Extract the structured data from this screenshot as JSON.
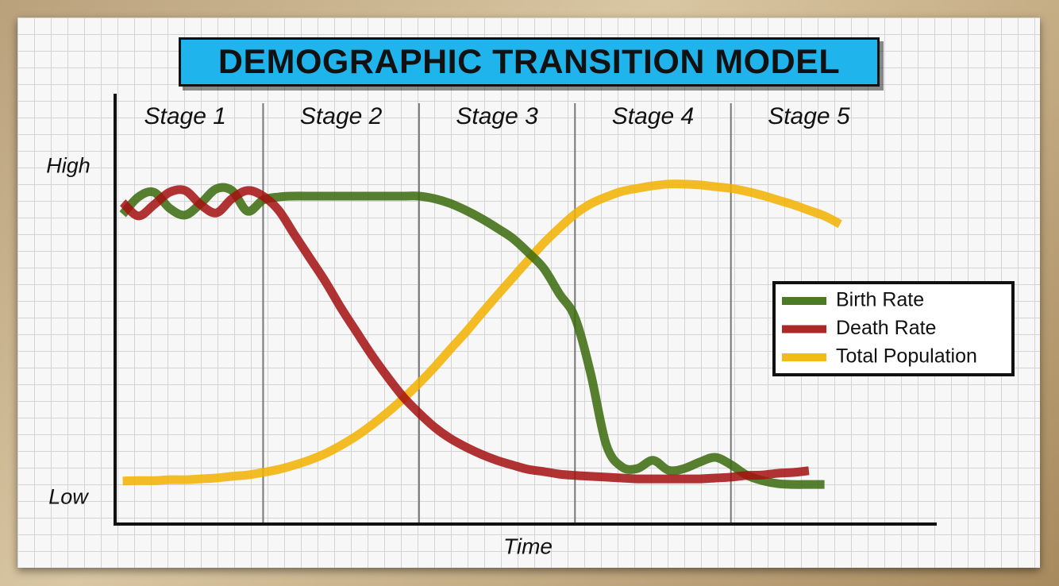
{
  "chart_data": {
    "type": "line",
    "title": "DEMOGRAPHIC TRANSITION MODEL",
    "x_label": "Time",
    "categories": [
      "Stage 1",
      "Stage 2",
      "Stage 3",
      "Stage 4",
      "Stage 5"
    ],
    "x": [
      0.1,
      0.2,
      0.3,
      0.4,
      0.5,
      0.6,
      0.7,
      0.8,
      0.9,
      1.0,
      1.1,
      1.2,
      1.3,
      1.4,
      1.5,
      1.6,
      1.7,
      1.8,
      1.9,
      2.0,
      2.1,
      2.2,
      2.3,
      2.4,
      2.5,
      2.6,
      2.7,
      2.8,
      2.9,
      3.0,
      3.1,
      3.2,
      3.3,
      3.4,
      3.5,
      3.6,
      3.7,
      3.8,
      3.9,
      4.0,
      4.1,
      4.2,
      4.3,
      4.4,
      4.5,
      4.6,
      4.7
    ],
    "xlim": [
      0,
      5.32
    ],
    "ylim": [
      0,
      100
    ],
    "yticks": [
      {
        "value": 83,
        "label": "High"
      },
      {
        "value": 6,
        "label": "Low"
      }
    ],
    "legend": "right",
    "series": [
      {
        "name": "Total Population",
        "color": "#f2b200",
        "values": [
          10.0,
          10.1,
          10.1,
          10.3,
          10.3,
          10.5,
          10.7,
          11.1,
          11.4,
          12.0,
          12.7,
          13.7,
          14.9,
          16.4,
          18.3,
          20.5,
          23.1,
          26.0,
          29.2,
          32.7,
          36.5,
          40.6,
          44.6,
          48.9,
          53.1,
          57.2,
          61.3,
          65.3,
          68.8,
          72.0,
          74.4,
          76.0,
          77.3,
          78.0,
          78.6,
          79.0,
          79.0,
          78.8,
          78.4,
          78.0,
          77.3,
          76.4,
          75.3,
          74.2,
          72.9,
          71.6,
          69.7
        ]
      },
      {
        "name": "Birth Rate",
        "color": "#3a6b0c",
        "values": [
          72.0,
          76.0,
          77.1,
          73.4,
          71.8,
          74.5,
          77.9,
          77.5,
          72.7,
          75.3,
          76.0,
          76.2,
          76.2,
          76.2,
          76.2,
          76.2,
          76.2,
          76.2,
          76.2,
          76.2,
          75.6,
          74.5,
          72.9,
          71.0,
          68.8,
          66.4,
          63.1,
          59.4,
          53.5,
          48.0,
          35.1,
          18.5,
          13.3,
          12.9,
          14.8,
          12.5,
          12.9,
          14.4,
          15.5,
          13.8,
          11.4,
          10.1,
          9.4,
          9.2,
          9.2,
          9.2,
          null
        ]
      },
      {
        "name": "Death Rate",
        "color": "#a50f0f",
        "values": [
          74.7,
          71.6,
          74.2,
          77.1,
          77.5,
          74.2,
          72.3,
          75.6,
          77.5,
          76.2,
          72.9,
          67.3,
          61.8,
          56.3,
          50.2,
          44.6,
          39.1,
          34.1,
          29.5,
          25.8,
          22.5,
          19.9,
          17.9,
          16.2,
          14.8,
          13.7,
          12.7,
          12.2,
          11.6,
          11.3,
          11.1,
          10.9,
          10.7,
          10.5,
          10.5,
          10.5,
          10.5,
          10.5,
          10.7,
          10.9,
          11.3,
          11.4,
          11.8,
          12.0,
          12.4,
          null,
          null
        ]
      }
    ]
  }
}
